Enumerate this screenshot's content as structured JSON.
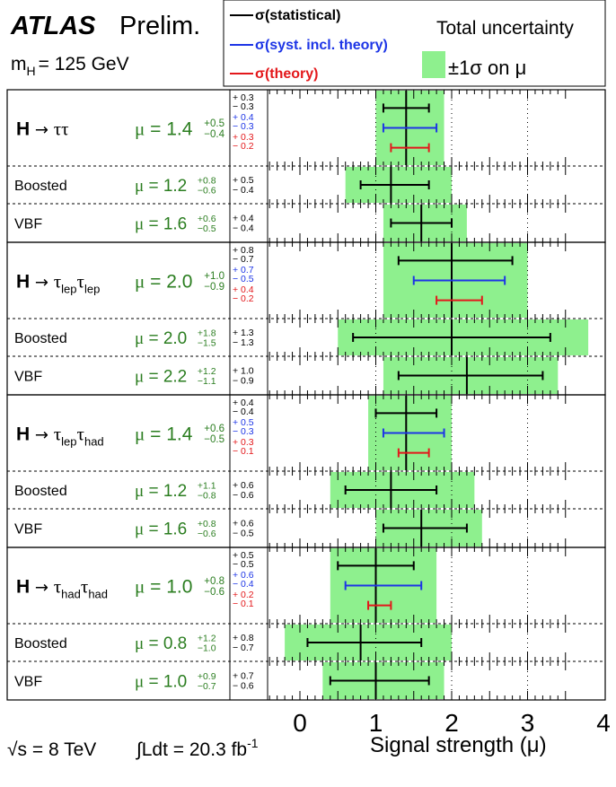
{
  "header": {
    "brand": "ATLAS",
    "status": "Prelim.",
    "mass": "m",
    "mass_sub": "H",
    "mass_value": "= 125 GeV"
  },
  "legend": {
    "stat_label": "σ(statistical)",
    "syst_label": "σ(syst. incl. theory)",
    "theory_label": "σ(theory)",
    "total_label": "Total uncertainty",
    "band_label": "±1σ on μ",
    "colors": {
      "stat": "#000000",
      "syst": "#1d35e6",
      "theory": "#e3181b",
      "band": "#8ef08e",
      "mu_text": "#2a7d1f"
    }
  },
  "footer": {
    "energy": "√s = 8 TeV",
    "lumi": "∫Ldt = 20.3 fb",
    "lumi_sup": "-1",
    "xlabel": "Signal strength (μ)"
  },
  "chart_data": {
    "type": "forest",
    "xlabel": "Signal strength (μ)",
    "xlim": [
      0,
      4
    ],
    "xticks": [
      "0",
      "1",
      "2",
      "3",
      "4"
    ],
    "grid": "dotted vertical lines at 1, 2, 3",
    "groups": [
      {
        "name": "H → ττ",
        "base": "H → ",
        "tau": "ττ",
        "tau_sub1": "",
        "tau_sub2": "",
        "mu": "1.4",
        "up": "+0.5",
        "dn": "−0.4",
        "mu_value": 1.4,
        "stat": [
          0.3,
          0.3
        ],
        "syst": [
          0.4,
          0.3
        ],
        "theory": [
          0.3,
          0.2
        ],
        "total": [
          0.5,
          0.4
        ],
        "stat_text": [
          "+ 0.3",
          "− 0.3"
        ],
        "syst_text": [
          "+ 0.4",
          "− 0.3"
        ],
        "theory_text": [
          "+ 0.3",
          "− 0.2"
        ],
        "subs": [
          {
            "name": "Boosted",
            "mu": "1.2",
            "up": "+0.8",
            "dn": "−0.6",
            "mu_value": 1.2,
            "total": [
              0.8,
              0.6
            ],
            "stat": [
              0.5,
              0.4
            ],
            "err_text": [
              "+ 0.5",
              "− 0.4"
            ]
          },
          {
            "name": "VBF",
            "mu": "1.6",
            "up": "+0.6",
            "dn": "−0.5",
            "mu_value": 1.6,
            "total": [
              0.6,
              0.5
            ],
            "stat": [
              0.4,
              0.4
            ],
            "err_text": [
              "+ 0.4",
              "− 0.4"
            ]
          }
        ]
      },
      {
        "name": "H → τlepτlep",
        "base": "H → ",
        "tau": "",
        "tau_sub1": "lep",
        "tau_sub2": "lep",
        "mu": "2.0",
        "up": "+1.0",
        "dn": "−0.9",
        "mu_value": 2.0,
        "stat": [
          0.8,
          0.7
        ],
        "syst": [
          0.7,
          0.5
        ],
        "theory": [
          0.4,
          0.2
        ],
        "total": [
          1.0,
          0.9
        ],
        "stat_text": [
          "+ 0.8",
          "− 0.7"
        ],
        "syst_text": [
          "+ 0.7",
          "− 0.5"
        ],
        "theory_text": [
          "+ 0.4",
          "− 0.2"
        ],
        "subs": [
          {
            "name": "Boosted",
            "mu": "2.0",
            "up": "+1.8",
            "dn": "−1.5",
            "mu_value": 2.0,
            "total": [
              1.8,
              1.5
            ],
            "stat": [
              1.3,
              1.3
            ],
            "err_text": [
              "+ 1.3",
              "− 1.3"
            ]
          },
          {
            "name": "VBF",
            "mu": "2.2",
            "up": "+1.2",
            "dn": "−1.1",
            "mu_value": 2.2,
            "total": [
              1.2,
              1.1
            ],
            "stat": [
              1.0,
              0.9
            ],
            "err_text": [
              "+ 1.0",
              "− 0.9"
            ]
          }
        ]
      },
      {
        "name": "H → τlepτhad",
        "base": "H → ",
        "tau": "",
        "tau_sub1": "lep",
        "tau_sub2": "had",
        "mu": "1.4",
        "up": "+0.6",
        "dn": "−0.5",
        "mu_value": 1.4,
        "stat": [
          0.4,
          0.4
        ],
        "syst": [
          0.5,
          0.3
        ],
        "theory": [
          0.3,
          0.1
        ],
        "total": [
          0.6,
          0.5
        ],
        "stat_text": [
          "+ 0.4",
          "− 0.4"
        ],
        "syst_text": [
          "+ 0.5",
          "− 0.3"
        ],
        "theory_text": [
          "+ 0.3",
          "− 0.1"
        ],
        "subs": [
          {
            "name": "Boosted",
            "mu": "1.2",
            "up": "+1.1",
            "dn": "−0.8",
            "mu_value": 1.2,
            "total": [
              1.1,
              0.8
            ],
            "stat": [
              0.6,
              0.6
            ],
            "err_text": [
              "+ 0.6",
              "− 0.6"
            ]
          },
          {
            "name": "VBF",
            "mu": "1.6",
            "up": "+0.8",
            "dn": "−0.6",
            "mu_value": 1.6,
            "total": [
              0.8,
              0.6
            ],
            "stat": [
              0.6,
              0.5
            ],
            "err_text": [
              "+ 0.6",
              "− 0.5"
            ]
          }
        ]
      },
      {
        "name": "H → τhadτhad",
        "base": "H → ",
        "tau": "",
        "tau_sub1": "had",
        "tau_sub2": "had",
        "mu": "1.0",
        "up": "+0.8",
        "dn": "−0.6",
        "mu_value": 1.0,
        "stat": [
          0.5,
          0.5
        ],
        "syst": [
          0.6,
          0.4
        ],
        "theory": [
          0.2,
          0.1
        ],
        "total": [
          0.8,
          0.6
        ],
        "stat_text": [
          "+ 0.5",
          "− 0.5"
        ],
        "syst_text": [
          "+ 0.6",
          "− 0.4"
        ],
        "theory_text": [
          "+ 0.2",
          "− 0.1"
        ],
        "subs": [
          {
            "name": "Boosted",
            "mu": "0.8",
            "up": "+1.2",
            "dn": "−1.0",
            "mu_value": 0.8,
            "total": [
              1.2,
              1.0
            ],
            "stat": [
              0.8,
              0.7
            ],
            "err_text": [
              "+ 0.8",
              "− 0.7"
            ]
          },
          {
            "name": "VBF",
            "mu": "1.0",
            "up": "+0.9",
            "dn": "−0.7",
            "mu_value": 1.0,
            "total": [
              0.9,
              0.7
            ],
            "stat": [
              0.7,
              0.6
            ],
            "err_text": [
              "+ 0.7",
              "− 0.6"
            ]
          }
        ]
      }
    ]
  }
}
